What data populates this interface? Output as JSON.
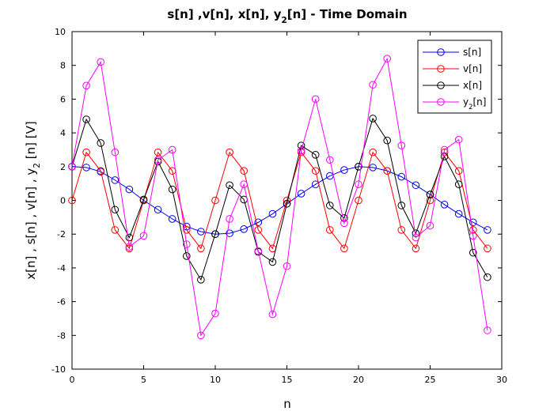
{
  "chart_data": {
    "type": "line",
    "title": "s[n] ,v[n], x[n], y2[n] - Time Domain",
    "title_parts": [
      "s[n] ,v[n], x[n], y",
      "2",
      "[n] - Time Domain"
    ],
    "xlabel": "n",
    "ylabel": "x[n] , s[n] , v[n] , y2[n] [V]",
    "ylabel_parts": [
      "x[n] , s[n] , v[n] , y",
      "2",
      " [n] [V]"
    ],
    "xlim": [
      0,
      30
    ],
    "ylim": [
      -10,
      10
    ],
    "xticks": [
      0,
      5,
      10,
      15,
      20,
      25,
      30
    ],
    "yticks": [
      -10,
      -8,
      -6,
      -4,
      -2,
      0,
      2,
      4,
      6,
      8,
      10
    ],
    "grid": false,
    "legend_position": "top-right",
    "marker": "circle",
    "x": [
      0,
      1,
      2,
      3,
      4,
      5,
      6,
      7,
      8,
      9,
      10,
      11,
      12,
      13,
      14,
      15,
      16,
      17,
      18,
      19,
      20,
      21,
      22,
      23,
      24,
      25,
      26,
      27,
      28,
      29
    ],
    "series": [
      {
        "name": "s[n]",
        "name_parts": [
          "s[n]"
        ],
        "color": "#0000ff",
        "values": [
          2.0,
          1.95,
          1.7,
          1.2,
          0.65,
          0.0,
          -0.55,
          -1.1,
          -1.55,
          -1.85,
          -2.0,
          -1.95,
          -1.7,
          -1.3,
          -0.8,
          -0.2,
          0.4,
          0.95,
          1.45,
          1.8,
          2.0,
          1.95,
          1.75,
          1.4,
          0.9,
          0.35,
          -0.25,
          -0.8,
          -1.3,
          -1.75
        ]
      },
      {
        "name": "v[n]",
        "name_parts": [
          "v[n]"
        ],
        "color": "#ff0000",
        "values": [
          0.0,
          2.85,
          1.75,
          -1.75,
          -2.85,
          0.0,
          2.85,
          1.75,
          -1.75,
          -2.85,
          0.0,
          2.85,
          1.75,
          -1.75,
          -2.85,
          0.0,
          2.85,
          1.75,
          -1.75,
          -2.85,
          0.0,
          2.85,
          1.75,
          -1.75,
          -2.85,
          0.0,
          2.85,
          1.75,
          -1.75,
          -2.85
        ]
      },
      {
        "name": "x[n]",
        "name_parts": [
          "x[n]"
        ],
        "color": "#000000",
        "values": [
          2.0,
          4.8,
          3.4,
          -0.55,
          -2.2,
          0.05,
          2.3,
          0.65,
          -3.3,
          -4.7,
          -2.0,
          0.9,
          0.05,
          -3.05,
          -3.65,
          -0.2,
          3.25,
          2.7,
          -0.3,
          -1.05,
          2.0,
          4.85,
          3.55,
          -0.3,
          -1.95,
          0.35,
          2.6,
          0.95,
          -3.1,
          -4.55
        ]
      },
      {
        "name": "y2[n]",
        "name_parts": [
          "y",
          "2",
          "[n]"
        ],
        "color": "#ff00ff",
        "values": [
          2.0,
          6.8,
          8.2,
          2.85,
          -2.75,
          -2.1,
          2.4,
          3.0,
          -2.6,
          -8.0,
          -6.7,
          -1.1,
          0.95,
          -3.0,
          -6.75,
          -3.9,
          2.95,
          6.0,
          2.4,
          -1.35,
          0.95,
          6.85,
          8.4,
          3.25,
          -2.2,
          -1.5,
          3.0,
          3.6,
          -2.1,
          -7.7
        ]
      }
    ]
  }
}
